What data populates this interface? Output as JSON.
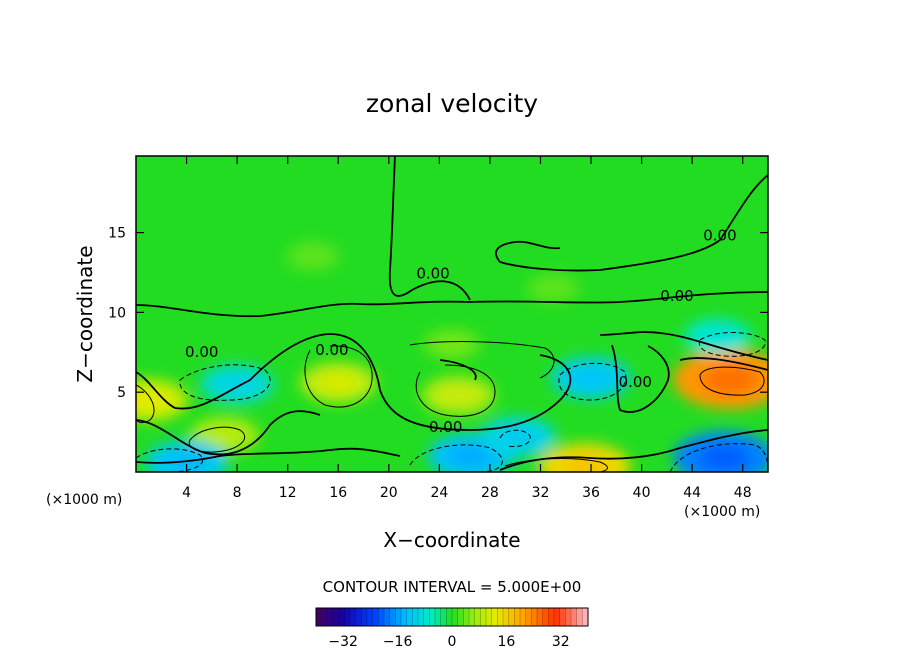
{
  "chart_data": {
    "type": "heatmap",
    "title": "zonal velocity",
    "xlabel": "X−coordinate",
    "ylabel": "Z−coordinate",
    "x_unit_left": "(×1000 m)",
    "x_unit_right": "(×1000 m)",
    "x_ticks": [
      "4",
      "8",
      "12",
      "16",
      "20",
      "24",
      "28",
      "32",
      "36",
      "40",
      "44",
      "48"
    ],
    "y_ticks": [
      "5",
      "10",
      "15"
    ],
    "xlim": [
      0,
      50
    ],
    "ylim": [
      0,
      19.8
    ],
    "contour_interval_text": "CONTOUR INTERVAL = 5.000E+00",
    "zero_contour_label": "0.00",
    "zero_label_positions": [
      {
        "x": 5.2,
        "y": 7.5
      },
      {
        "x": 15.5,
        "y": 7.6
      },
      {
        "x": 23.5,
        "y": 12.4
      },
      {
        "x": 24.5,
        "y": 2.8
      },
      {
        "x": 39.5,
        "y": 5.6
      },
      {
        "x": 42.8,
        "y": 11.0
      },
      {
        "x": 46.2,
        "y": 14.8
      }
    ],
    "colorbar": {
      "range": [
        -40,
        40
      ],
      "ticks": [
        "−32",
        "−16",
        "0",
        "16",
        "32"
      ],
      "tick_values": [
        -32,
        -16,
        0,
        16,
        32
      ]
    },
    "field_features": [
      {
        "x": 47,
        "y": 5.8,
        "value": 22
      },
      {
        "x": 1,
        "y": 4.5,
        "value": 11
      },
      {
        "x": 16,
        "y": 5.6,
        "value": 10
      },
      {
        "x": 25.5,
        "y": 4.8,
        "value": 9
      },
      {
        "x": 7,
        "y": 2.3,
        "value": 8
      },
      {
        "x": 35.5,
        "y": 0.3,
        "value": 15
      },
      {
        "x": 8,
        "y": 5.5,
        "value": -9
      },
      {
        "x": 36,
        "y": 5.9,
        "value": -11
      },
      {
        "x": 46,
        "y": 8.5,
        "value": -7
      },
      {
        "x": 4,
        "y": 0.6,
        "value": -12
      },
      {
        "x": 26.5,
        "y": 1.0,
        "value": -13
      },
      {
        "x": 46.5,
        "y": 0.9,
        "value": -18
      },
      {
        "x": 30.2,
        "y": 2.2,
        "value": -10
      },
      {
        "x": 14,
        "y": 13.5,
        "value": 3
      },
      {
        "x": 33,
        "y": 11.5,
        "value": 3
      },
      {
        "x": 25,
        "y": 8.0,
        "value": 4
      }
    ]
  }
}
